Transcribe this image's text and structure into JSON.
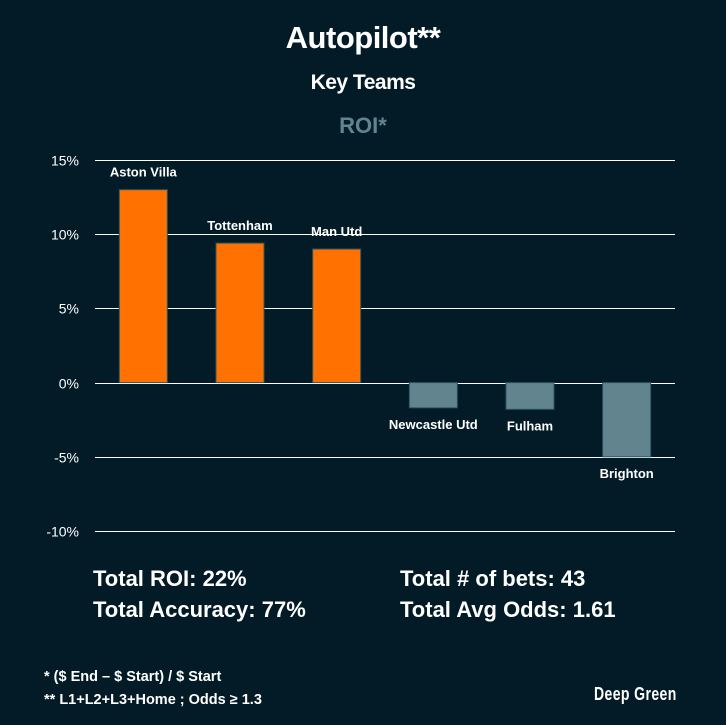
{
  "header": {
    "title": "Autopilot**",
    "subtitle": "Key Teams"
  },
  "chart_data": {
    "type": "bar",
    "title": "ROI*",
    "xlabel": "",
    "ylabel": "",
    "categories": [
      "Aston Villa",
      "Tottenham",
      "Man Utd",
      "Newcastle Utd",
      "Fulham",
      "Brighton"
    ],
    "values": [
      13.0,
      9.4,
      9.0,
      -1.7,
      -1.8,
      -5.0
    ],
    "unit": "%",
    "ylim": [
      -10,
      15
    ],
    "yticks": [
      15,
      10,
      5,
      0,
      -5,
      -10
    ],
    "ytick_labels": [
      "15%",
      "10%",
      "5%",
      "0%",
      "-5%",
      "-10%"
    ],
    "grid": true,
    "legend": "none",
    "positive_color": "#ff7100",
    "negative_color": "#62848e",
    "bar_outline_color": "#2e5562",
    "grid_color": "#ffffff",
    "title_color": "#62848e"
  },
  "stats": {
    "total_roi": "Total ROI: 22%",
    "total_accuracy": "Total Accuracy: 77%",
    "total_bets": "Total # of bets: 43",
    "total_avg_odds": "Total Avg Odds: 1.61"
  },
  "footnotes": {
    "roi_definition": "* ($ End – $ Start) / $ Start",
    "autopilot_definition": "** L1+L2+L3+Home ; Odds ≥ 1.3"
  },
  "brand": {
    "name": "Deep Green"
  },
  "colors": {
    "background": "#021b26",
    "text": "#ffffff"
  }
}
